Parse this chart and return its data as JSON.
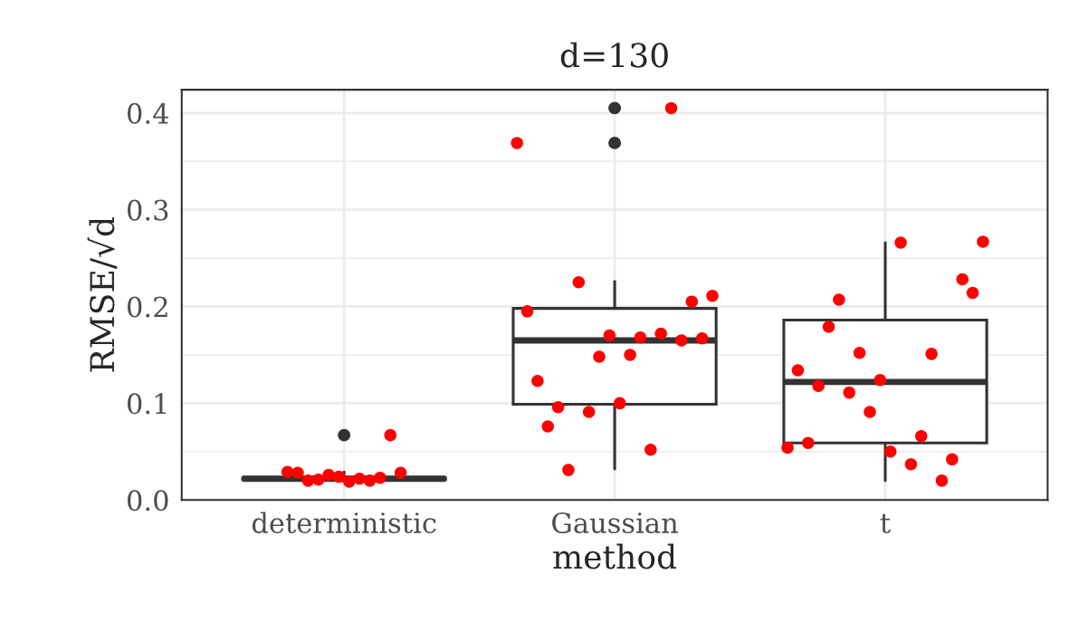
{
  "chart_data": {
    "type": "box",
    "title": "d=130",
    "xlabel": "method",
    "ylabel": "RMSE/√d",
    "categories": [
      "deterministic",
      "Gaussian",
      "t"
    ],
    "boxes": [
      {
        "low": 0.019,
        "q1": 0.021,
        "median": 0.022,
        "q3": 0.023,
        "high": 0.029,
        "outliers": [
          0.067
        ]
      },
      {
        "low": 0.032,
        "q1": 0.099,
        "median": 0.165,
        "q3": 0.198,
        "high": 0.226,
        "outliers": [
          0.369,
          0.405
        ]
      },
      {
        "low": 0.02,
        "q1": 0.059,
        "median": 0.122,
        "q3": 0.186,
        "high": 0.266
      }
    ],
    "color": "#333333",
    "series": [
      {
        "type": "scatter",
        "color": "#ff0000",
        "values": [
          null,
          0.369,
          0.054
        ]
      },
      {
        "type": "scatter",
        "color": "#ff0000",
        "values": [
          null,
          0.195,
          0.134
        ]
      },
      {
        "type": "scatter",
        "color": "#ff0000",
        "values": [
          null,
          0.123,
          0.059
        ]
      },
      {
        "type": "scatter",
        "color": "#ff0000",
        "values": [
          null,
          0.076,
          0.118
        ]
      },
      {
        "type": "scatter",
        "color": "#ff0000",
        "values": [
          0.029,
          0.096,
          0.179
        ]
      },
      {
        "type": "scatter",
        "color": "#ff0000",
        "values": [
          0.028,
          0.031,
          0.207
        ]
      },
      {
        "type": "scatter",
        "color": "#ff0000",
        "values": [
          0.02,
          0.225,
          0.111
        ]
      },
      {
        "type": "scatter",
        "color": "#ff0000",
        "values": [
          0.021,
          0.091,
          0.152
        ]
      },
      {
        "type": "scatter",
        "color": "#ff0000",
        "values": [
          0.026,
          0.148,
          0.091
        ]
      },
      {
        "type": "scatter",
        "color": "#ff0000",
        "values": [
          0.024,
          0.17,
          0.124
        ]
      },
      {
        "type": "scatter",
        "color": "#ff0000",
        "values": [
          0.019,
          0.1,
          0.05
        ]
      },
      {
        "type": "scatter",
        "color": "#ff0000",
        "values": [
          0.022,
          0.15,
          0.266
        ]
      },
      {
        "type": "scatter",
        "color": "#ff0000",
        "values": [
          0.02,
          0.168,
          0.037
        ]
      },
      {
        "type": "scatter",
        "color": "#ff0000",
        "values": [
          0.023,
          0.052,
          0.066
        ]
      },
      {
        "type": "scatter",
        "color": "#ff0000",
        "values": [
          0.067,
          0.172,
          0.151
        ]
      },
      {
        "type": "scatter",
        "color": "#ff0000",
        "values": [
          0.028,
          0.405,
          0.02
        ]
      },
      {
        "type": "scatter",
        "color": "#ff0000",
        "values": [
          null,
          0.165,
          0.042
        ]
      },
      {
        "type": "scatter",
        "color": "#ff0000",
        "values": [
          null,
          0.205,
          0.228
        ]
      },
      {
        "type": "scatter",
        "color": "#ff0000",
        "values": [
          null,
          0.167,
          0.214
        ]
      },
      {
        "type": "scatter",
        "color": "#ff0000",
        "values": [
          null,
          0.211,
          0.267
        ]
      }
    ],
    "ylim": [
      0,
      0.424
    ],
    "yticks": [
      {
        "value": 0,
        "label": "0.0"
      },
      {
        "value": 0.05,
        "label": null
      },
      0.1,
      {
        "value": 0.15,
        "label": null
      },
      0.2,
      {
        "value": 0.25,
        "label": null
      },
      0.3,
      {
        "value": 0.35,
        "label": null
      },
      0.4
    ],
    "grid": true
  }
}
